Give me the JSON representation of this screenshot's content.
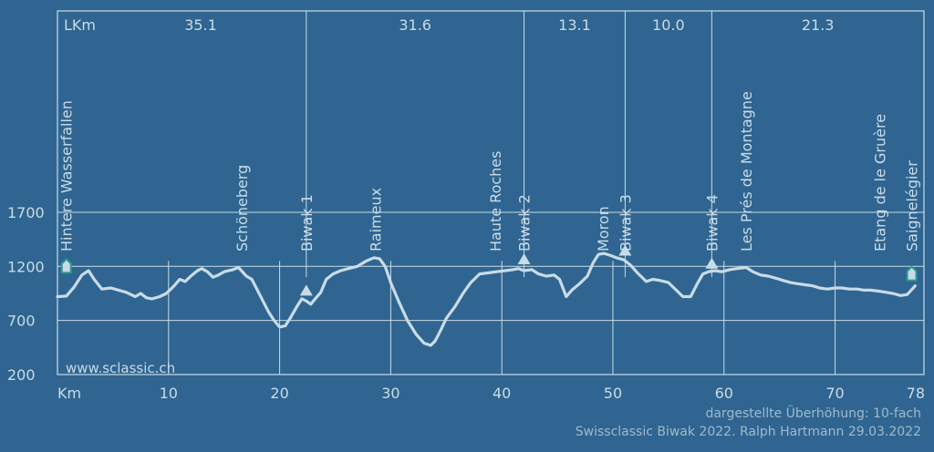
{
  "colors": {
    "background": "#2f6590",
    "grid": "#c9dbe8",
    "profile": "#c9dbe8",
    "text": "#c9dbe8",
    "marker_fill": "#c9dbe8",
    "hut_stroke": "#2e9a8e",
    "footer_text": "#9fb9cd"
  },
  "website": "www.sclassic.ch",
  "footer": {
    "line1": "dargestellte Überhöhung: 10-fach",
    "line2": "Swissclassic Biwak 2022. Ralph Hartmann 29.03.2022"
  },
  "chart_data": {
    "type": "area",
    "xlabel": "Km",
    "ylabel": "",
    "xlim": [
      0,
      78
    ],
    "ylim": [
      200,
      3300
    ],
    "x_ticks": [
      10,
      20,
      30,
      40,
      50,
      60,
      70,
      78
    ],
    "y_ticks": [
      200,
      700,
      1200,
      1700
    ],
    "legend": "none",
    "x": [
      0,
      0.8,
      1.5,
      2.2,
      2.8,
      3.3,
      4,
      4.8,
      5.5,
      6.2,
      7,
      7.5,
      8,
      8.5,
      9.2,
      9.8,
      10.5,
      11,
      11.5,
      12,
      12.6,
      13,
      13.5,
      14,
      14.5,
      15,
      15.8,
      16.3,
      17,
      17.5,
      18,
      18.5,
      19,
      19.5,
      20,
      20.5,
      21,
      21.5,
      22,
      22.4,
      22.8,
      23.2,
      23.7,
      24.2,
      24.8,
      25.5,
      26.2,
      27,
      27.8,
      28.5,
      29,
      29.5,
      30,
      30.7,
      31.5,
      32.3,
      33,
      33.6,
      34,
      34.5,
      35,
      35.8,
      36.5,
      37.2,
      38,
      38.8,
      39.5,
      40.3,
      41,
      41.5,
      42,
      42.7,
      43.3,
      44,
      44.7,
      45.2,
      45.8,
      46.3,
      47,
      47.7,
      48.2,
      48.7,
      49.2,
      49.8,
      50.3,
      51,
      51.6,
      52.2,
      53,
      53.6,
      54.2,
      55,
      55.7,
      56.3,
      57,
      57.6,
      58.1,
      58.6,
      59.2,
      59.8,
      60.5,
      61.2,
      62,
      62.6,
      63.3,
      64,
      64.7,
      65.3,
      66,
      66.6,
      67.3,
      68,
      68.6,
      69.3,
      70,
      70.6,
      71.3,
      72,
      72.6,
      73.2,
      74,
      74.6,
      75.2,
      75.9,
      76.5,
      77.2,
      78
    ],
    "elevation": [
      920,
      925,
      1010,
      1120,
      1160,
      1080,
      990,
      1000,
      980,
      960,
      920,
      950,
      910,
      900,
      920,
      950,
      1020,
      1080,
      1060,
      1110,
      1160,
      1180,
      1150,
      1100,
      1120,
      1150,
      1170,
      1190,
      1110,
      1080,
      980,
      880,
      780,
      700,
      640,
      650,
      730,
      820,
      900,
      880,
      850,
      900,
      960,
      1080,
      1130,
      1160,
      1180,
      1200,
      1250,
      1280,
      1270,
      1200,
      1050,
      880,
      700,
      570,
      490,
      470,
      510,
      610,
      720,
      830,
      950,
      1050,
      1130,
      1140,
      1150,
      1160,
      1170,
      1180,
      1160,
      1170,
      1130,
      1110,
      1120,
      1080,
      920,
      980,
      1040,
      1110,
      1230,
      1310,
      1320,
      1300,
      1280,
      1260,
      1210,
      1140,
      1060,
      1080,
      1070,
      1050,
      980,
      920,
      920,
      1040,
      1130,
      1150,
      1160,
      1150,
      1170,
      1180,
      1190,
      1150,
      1120,
      1110,
      1090,
      1070,
      1050,
      1040,
      1030,
      1020,
      1000,
      990,
      1000,
      1000,
      990,
      990,
      980,
      980,
      970,
      960,
      950,
      930,
      940,
      1020
    ],
    "sections": [
      {
        "label": "35.1",
        "start_km": 0,
        "end_km": 22.4
      },
      {
        "label": "31.6",
        "start_km": 22.4,
        "end_km": 42
      },
      {
        "label": "13.1",
        "start_km": 42,
        "end_km": 51.1
      },
      {
        "label": "10.0",
        "start_km": 51.1,
        "end_km": 58.9
      },
      {
        "label": "21.3",
        "start_km": 58.9,
        "end_km": 78
      }
    ],
    "section_header_label": "LKm",
    "places": [
      {
        "label": "Hintere Wasserfallen",
        "km": 0.8,
        "marker": "hut",
        "marker_elev": 1200
      },
      {
        "label": "Schöneberg",
        "km": 16.6,
        "marker": "none"
      },
      {
        "label": "Biwak 1",
        "km": 22.4,
        "marker": "triangle",
        "marker_elev": 980
      },
      {
        "label": "Raimeux",
        "km": 28.6,
        "marker": "none"
      },
      {
        "label": "Haute Roches",
        "km": 39.4,
        "marker": "none"
      },
      {
        "label": "Biwak 2",
        "km": 42,
        "marker": "triangle",
        "marker_elev": 1270
      },
      {
        "label": "Moron",
        "km": 49.1,
        "marker": "none"
      },
      {
        "label": "Biwak 3",
        "km": 51.1,
        "marker": "triangle",
        "marker_elev": 1350
      },
      {
        "label": "Biwak 4",
        "km": 58.9,
        "marker": "triangle",
        "marker_elev": 1230
      },
      {
        "label": "Les Prés de Montagne",
        "km": 62,
        "marker": "none"
      },
      {
        "label": "Etang de le Gruère",
        "km": 74,
        "marker": "none"
      },
      {
        "label": "Saignelégier",
        "km": 76.9,
        "marker": "hut",
        "marker_elev": 1130
      }
    ]
  }
}
